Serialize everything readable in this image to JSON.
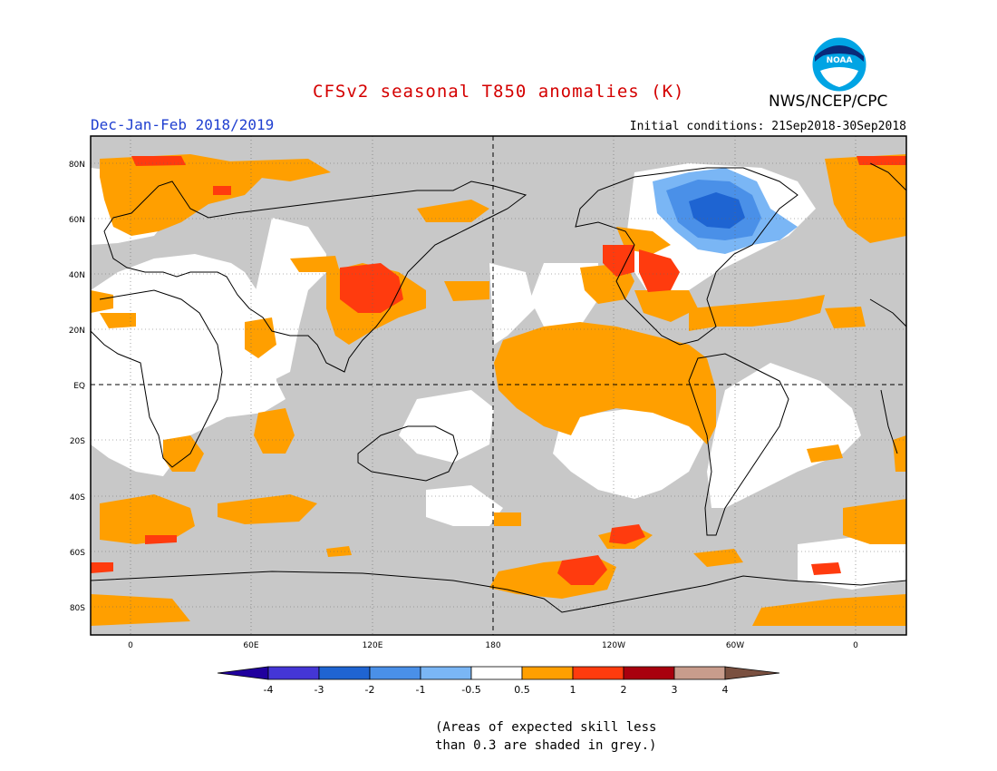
{
  "header": {
    "title": "CFSv2 seasonal T850 anomalies (K)",
    "season": "Dec-Jan-Feb 2018/2019",
    "initial_conditions": "Initial conditions: 21Sep2018-30Sep2018",
    "agency": "NWS/NCEP/CPC",
    "logo_text": "NOAA"
  },
  "map": {
    "lat_labels": [
      "80N",
      "60N",
      "40N",
      "20N",
      "EQ",
      "20S",
      "40S",
      "60S",
      "80S"
    ],
    "lon_labels": [
      "0",
      "60E",
      "120E",
      "180",
      "120W",
      "60W",
      "0"
    ],
    "colors": {
      "grey_low_skill": "#c8c8c8",
      "land_outline": "#000000",
      "pos_0_5_1": "#ff9f00",
      "pos_1_2": "#ff3b0e",
      "pos_2_3": "#a8000e",
      "neg_0_5_1": "#7ab6f5",
      "neg_1_2": "#4a90e8",
      "neg_2_3": "#1e64d2"
    }
  },
  "legend": {
    "labels": [
      "-4",
      "-3",
      "-2",
      "-1",
      "-0.5",
      "0.5",
      "1",
      "2",
      "3",
      "4"
    ],
    "colors": [
      "#20009e",
      "#4436d6",
      "#1f64d2",
      "#4a90e8",
      "#7ab6f5",
      "#ffffff",
      "#ff9f00",
      "#ff3b0e",
      "#a8000e",
      "#c89c8c"
    ],
    "end_colors": {
      "low": "#20009e",
      "high": "#7a5040"
    }
  },
  "footnote": {
    "line1": "(Areas of expected skill less",
    "line2": "than 0.3 are shaded in grey.)"
  }
}
